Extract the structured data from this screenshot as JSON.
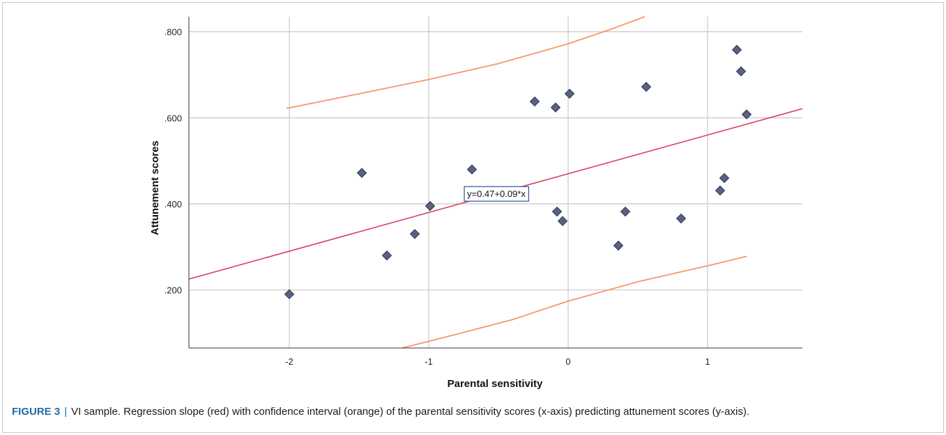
{
  "chart_data": {
    "type": "scatter",
    "xlabel": "Parental sensitivity",
    "ylabel": "Attunement scores",
    "xlim": [
      -2.72,
      1.68
    ],
    "ylim": [
      0.065,
      0.835
    ],
    "x_ticks": [
      -2,
      -1,
      0,
      1
    ],
    "x_tick_labels": [
      "-2",
      "-1",
      "0",
      "1"
    ],
    "y_ticks": [
      0.2,
      0.4,
      0.6,
      0.8
    ],
    "y_tick_labels": [
      ".200",
      ".400",
      ".600",
      ".800"
    ],
    "grid": true,
    "points": [
      {
        "x": -2.0,
        "y": 0.19
      },
      {
        "x": -1.48,
        "y": 0.472
      },
      {
        "x": -1.3,
        "y": 0.28
      },
      {
        "x": -1.1,
        "y": 0.33
      },
      {
        "x": -0.99,
        "y": 0.395
      },
      {
        "x": -0.69,
        "y": 0.48
      },
      {
        "x": -0.24,
        "y": 0.638
      },
      {
        "x": -0.09,
        "y": 0.624
      },
      {
        "x": -0.08,
        "y": 0.382
      },
      {
        "x": -0.04,
        "y": 0.36
      },
      {
        "x": 0.01,
        "y": 0.656
      },
      {
        "x": 0.36,
        "y": 0.303
      },
      {
        "x": 0.41,
        "y": 0.382
      },
      {
        "x": 0.56,
        "y": 0.672
      },
      {
        "x": 0.81,
        "y": 0.366
      },
      {
        "x": 1.09,
        "y": 0.431
      },
      {
        "x": 1.12,
        "y": 0.46
      },
      {
        "x": 1.21,
        "y": 0.758
      },
      {
        "x": 1.24,
        "y": 0.708
      },
      {
        "x": 1.28,
        "y": 0.608
      }
    ],
    "regression": {
      "intercept": 0.47,
      "slope": 0.09,
      "label": "y=0.47+0.09*x",
      "label_at": {
        "x": -0.75,
        "y": 0.424
      }
    },
    "ci_upper": [
      [
        -2.02,
        0.622
      ],
      [
        -1.5,
        0.656
      ],
      [
        -1.0,
        0.689
      ],
      [
        -0.5,
        0.726
      ],
      [
        0.0,
        0.772
      ],
      [
        0.3,
        0.805
      ],
      [
        0.55,
        0.835
      ]
    ],
    "ci_lower": [
      [
        -1.19,
        0.065
      ],
      [
        -0.8,
        0.097
      ],
      [
        -0.4,
        0.131
      ],
      [
        0.0,
        0.174
      ],
      [
        0.5,
        0.219
      ],
      [
        1.0,
        0.256
      ],
      [
        1.28,
        0.278
      ]
    ],
    "colors": {
      "points": "#5a6283",
      "point_stroke": "#2e3550",
      "regression": "#d9405f",
      "ci": "#f5966b",
      "grid": "#c8c8c8",
      "label_border": "#2b4f9e"
    }
  },
  "caption": {
    "label": "FIGURE 3",
    "separator": "|",
    "text": "VI sample. Regression slope (red) with confidence interval (orange) of the parental sensitivity scores (x-axis) predicting attunement scores (y-axis)."
  }
}
